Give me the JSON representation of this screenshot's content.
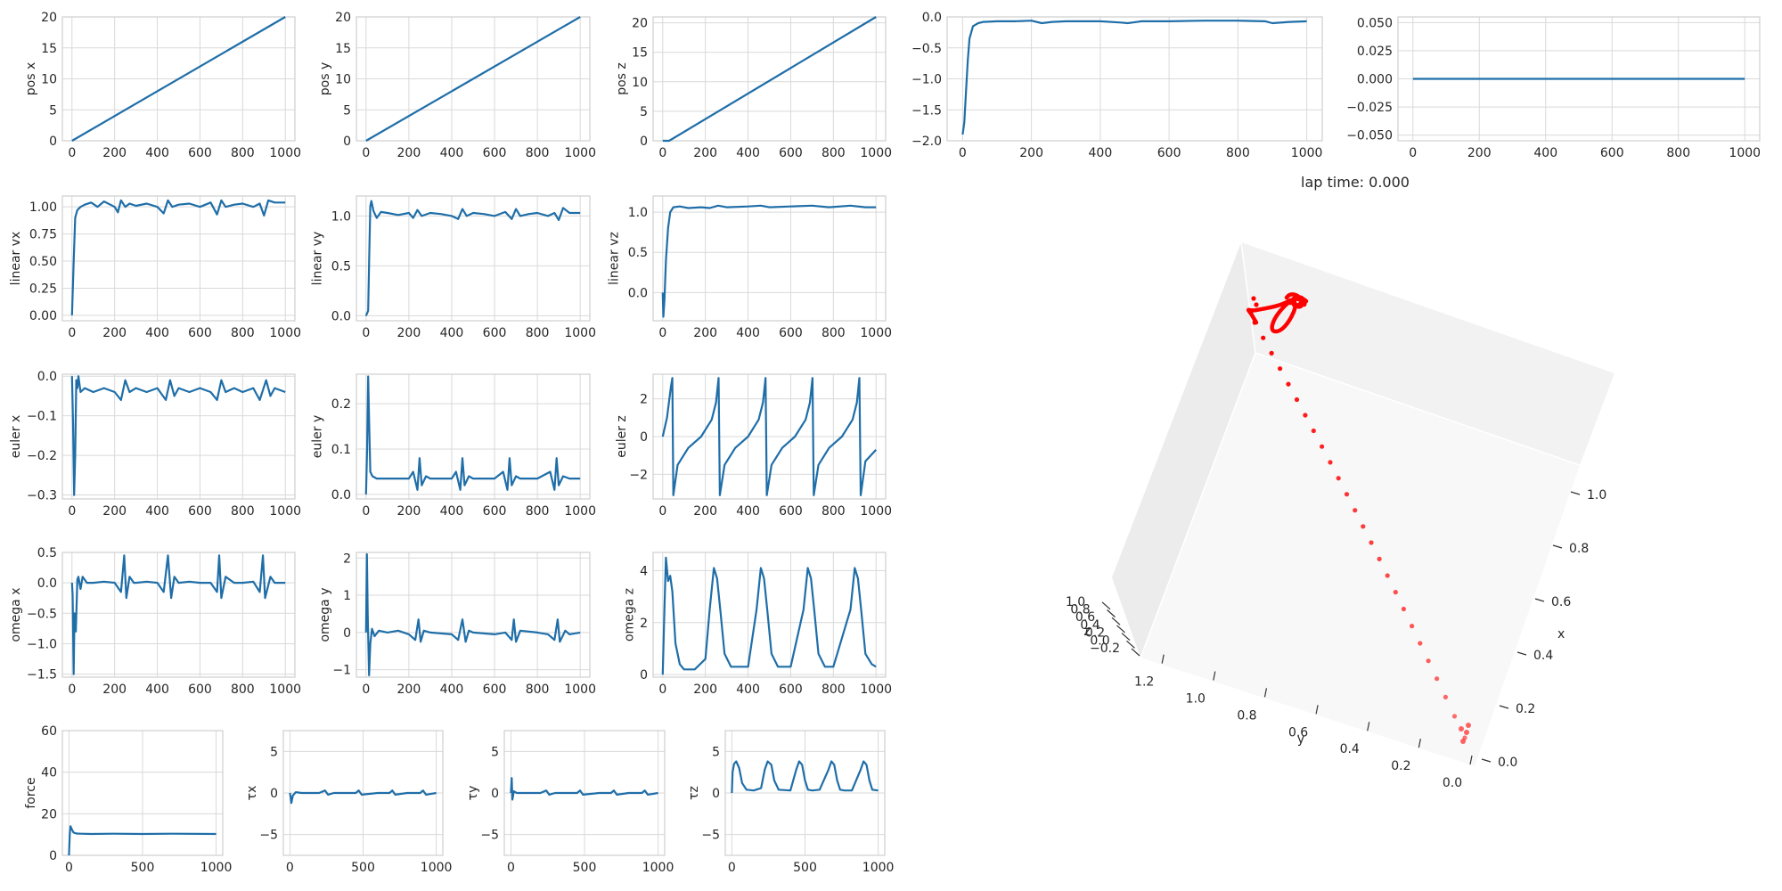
{
  "lap_time_label": "lap time: 0.000",
  "colors": {
    "line": "#1f6ea8",
    "grid": "#d9d9d9",
    "frame": "#cfcfcf",
    "traj": "#ff0000"
  },
  "chart_data": [
    {
      "id": "pos-x",
      "type": "line",
      "ylabel": "pos x",
      "xlim": [
        0,
        1000
      ],
      "ylim": [
        0,
        20
      ],
      "xticks": [
        0,
        200,
        400,
        600,
        800,
        1000
      ],
      "yticks": [
        0,
        5,
        10,
        15,
        20
      ],
      "x": [
        0,
        1000
      ],
      "y": [
        0,
        20
      ]
    },
    {
      "id": "pos-y",
      "type": "line",
      "ylabel": "pos y",
      "xlim": [
        0,
        1000
      ],
      "ylim": [
        0,
        20
      ],
      "xticks": [
        0,
        200,
        400,
        600,
        800,
        1000
      ],
      "yticks": [
        0,
        5,
        10,
        15,
        20
      ],
      "x": [
        0,
        1000
      ],
      "y": [
        0,
        20
      ]
    },
    {
      "id": "pos-z",
      "type": "line",
      "ylabel": "pos z",
      "xlim": [
        0,
        1000
      ],
      "ylim": [
        0,
        21
      ],
      "xticks": [
        0,
        200,
        400,
        600,
        800,
        1000
      ],
      "yticks": [
        0,
        5,
        10,
        15,
        20
      ],
      "x": [
        0,
        30,
        1000
      ],
      "y": [
        0,
        0,
        21
      ]
    },
    {
      "id": "top-right-1",
      "type": "line",
      "ylabel": "",
      "xlim": [
        0,
        1000
      ],
      "ylim": [
        -2,
        0
      ],
      "xticks": [
        0,
        200,
        400,
        600,
        800,
        1000
      ],
      "yticks": [
        -2.0,
        -1.5,
        -1.0,
        -0.5,
        0.0
      ],
      "x": [
        0,
        5,
        10,
        15,
        20,
        30,
        45,
        60,
        100,
        150,
        200,
        230,
        260,
        300,
        400,
        460,
        480,
        520,
        600,
        700,
        800,
        880,
        900,
        950,
        1000
      ],
      "y": [
        -1.9,
        -1.7,
        -1.2,
        -0.7,
        -0.35,
        -0.15,
        -0.1,
        -0.08,
        -0.07,
        -0.07,
        -0.06,
        -0.1,
        -0.08,
        -0.07,
        -0.07,
        -0.09,
        -0.1,
        -0.07,
        -0.07,
        -0.06,
        -0.06,
        -0.07,
        -0.1,
        -0.08,
        -0.07
      ]
    },
    {
      "id": "top-right-2",
      "type": "line",
      "ylabel": "",
      "xlim": [
        0,
        1000
      ],
      "ylim": [
        -0.055,
        0.055
      ],
      "xticks": [
        0,
        200,
        400,
        600,
        800,
        1000
      ],
      "yticks": [
        -0.05,
        -0.025,
        0.0,
        0.025,
        0.05
      ],
      "x": [
        0,
        1000
      ],
      "y": [
        0,
        0
      ]
    },
    {
      "id": "linear-vx",
      "type": "line",
      "ylabel": "linear vx",
      "xlim": [
        0,
        1000
      ],
      "ylim": [
        -0.05,
        1.1
      ],
      "xticks": [
        0,
        200,
        400,
        600,
        800,
        1000
      ],
      "yticks": [
        0.0,
        0.25,
        0.5,
        0.75,
        1.0
      ],
      "x": [
        0,
        8,
        15,
        25,
        40,
        60,
        90,
        120,
        150,
        180,
        200,
        215,
        230,
        250,
        270,
        300,
        350,
        400,
        430,
        450,
        470,
        500,
        550,
        600,
        650,
        680,
        700,
        720,
        760,
        800,
        850,
        880,
        900,
        920,
        950,
        1000
      ],
      "y": [
        0,
        0.5,
        0.9,
        0.97,
        1.0,
        1.02,
        1.04,
        1.0,
        1.05,
        1.02,
        1.0,
        0.95,
        1.06,
        1.0,
        1.03,
        1.01,
        1.03,
        1.0,
        0.94,
        1.06,
        1.0,
        1.02,
        1.03,
        1.0,
        1.04,
        0.93,
        1.06,
        1.0,
        1.02,
        1.03,
        1.0,
        1.03,
        0.92,
        1.06,
        1.04,
        1.04
      ]
    },
    {
      "id": "linear-vy",
      "type": "line",
      "ylabel": "linear vy",
      "xlim": [
        0,
        1000
      ],
      "ylim": [
        -0.05,
        1.2
      ],
      "xticks": [
        0,
        200,
        400,
        600,
        800,
        1000
      ],
      "yticks": [
        0.0,
        0.5,
        1.0
      ],
      "x": [
        0,
        10,
        15,
        20,
        25,
        35,
        50,
        70,
        100,
        150,
        200,
        220,
        240,
        260,
        300,
        350,
        400,
        430,
        450,
        470,
        500,
        550,
        600,
        650,
        680,
        700,
        720,
        760,
        800,
        850,
        880,
        900,
        920,
        950,
        1000
      ],
      "y": [
        0,
        0.05,
        0.6,
        1.1,
        1.15,
        1.05,
        0.98,
        1.04,
        1.03,
        1.01,
        1.03,
        0.98,
        1.06,
        1.0,
        1.03,
        1.02,
        1.0,
        0.97,
        1.07,
        1.0,
        1.03,
        1.02,
        1.0,
        1.04,
        0.97,
        1.07,
        1.0,
        1.02,
        1.03,
        1.0,
        1.03,
        0.96,
        1.08,
        1.03,
        1.03
      ]
    },
    {
      "id": "linear-vz",
      "type": "line",
      "ylabel": "linear vz",
      "xlim": [
        0,
        1000
      ],
      "ylim": [
        -0.35,
        1.2
      ],
      "xticks": [
        0,
        200,
        400,
        600,
        800,
        1000
      ],
      "yticks": [
        0.0,
        0.5,
        1.0
      ],
      "x": [
        0,
        3,
        8,
        15,
        25,
        35,
        50,
        80,
        120,
        180,
        220,
        260,
        300,
        400,
        460,
        500,
        600,
        700,
        780,
        880,
        950,
        1000
      ],
      "y": [
        0,
        -0.3,
        -0.1,
        0.4,
        0.8,
        1.0,
        1.06,
        1.07,
        1.05,
        1.06,
        1.05,
        1.08,
        1.06,
        1.07,
        1.08,
        1.06,
        1.07,
        1.08,
        1.06,
        1.08,
        1.06,
        1.06
      ]
    },
    {
      "id": "euler-x",
      "type": "line",
      "ylabel": "euler x",
      "xlim": [
        0,
        1000
      ],
      "ylim": [
        -0.31,
        0.005
      ],
      "xticks": [
        0,
        200,
        400,
        600,
        800,
        1000
      ],
      "yticks": [
        -0.3,
        -0.2,
        -0.1,
        0.0
      ],
      "x": [
        0,
        5,
        10,
        15,
        20,
        25,
        30,
        40,
        60,
        100,
        150,
        200,
        230,
        250,
        270,
        300,
        350,
        400,
        440,
        460,
        480,
        500,
        550,
        600,
        650,
        680,
        700,
        720,
        760,
        800,
        850,
        880,
        910,
        930,
        950,
        1000
      ],
      "y": [
        0,
        -0.12,
        -0.3,
        -0.2,
        -0.01,
        -0.03,
        0,
        -0.04,
        -0.03,
        -0.04,
        -0.03,
        -0.04,
        -0.06,
        -0.01,
        -0.04,
        -0.03,
        -0.04,
        -0.03,
        -0.06,
        -0.01,
        -0.05,
        -0.03,
        -0.04,
        -0.03,
        -0.04,
        -0.06,
        -0.01,
        -0.04,
        -0.03,
        -0.04,
        -0.03,
        -0.06,
        -0.01,
        -0.05,
        -0.03,
        -0.04
      ]
    },
    {
      "id": "euler-y",
      "type": "line",
      "ylabel": "euler y",
      "xlim": [
        0,
        1000
      ],
      "ylim": [
        -0.01,
        0.265
      ],
      "xticks": [
        0,
        200,
        400,
        600,
        800,
        1000
      ],
      "yticks": [
        0.0,
        0.1,
        0.2
      ],
      "x": [
        0,
        5,
        10,
        15,
        20,
        30,
        50,
        100,
        150,
        200,
        220,
        240,
        250,
        260,
        280,
        300,
        400,
        420,
        440,
        450,
        460,
        480,
        500,
        600,
        640,
        660,
        670,
        680,
        700,
        720,
        800,
        860,
        880,
        890,
        900,
        920,
        950,
        1000
      ],
      "y": [
        0,
        0.1,
        0.26,
        0.15,
        0.05,
        0.04,
        0.035,
        0.035,
        0.035,
        0.035,
        0.05,
        0.01,
        0.08,
        0.02,
        0.04,
        0.035,
        0.035,
        0.05,
        0.01,
        0.08,
        0.02,
        0.04,
        0.035,
        0.035,
        0.05,
        0.01,
        0.08,
        0.02,
        0.04,
        0.035,
        0.035,
        0.05,
        0.01,
        0.08,
        0.02,
        0.04,
        0.035,
        0.035
      ]
    },
    {
      "id": "euler-z",
      "type": "line",
      "ylabel": "euler z",
      "xlim": [
        0,
        1000
      ],
      "ylim": [
        -3.3,
        3.3
      ],
      "xticks": [
        0,
        200,
        400,
        600,
        800,
        1000
      ],
      "yticks": [
        -2,
        0,
        2
      ],
      "x": [
        0,
        20,
        38,
        45,
        50,
        70,
        120,
        180,
        230,
        250,
        262,
        268,
        290,
        340,
        400,
        450,
        470,
        482,
        488,
        510,
        560,
        620,
        670,
        690,
        702,
        708,
        730,
        780,
        840,
        890,
        910,
        922,
        928,
        950,
        1000
      ],
      "y": [
        0,
        1.0,
        2.6,
        3.1,
        -3.1,
        -1.5,
        -0.6,
        0,
        0.9,
        1.8,
        3.1,
        -3.1,
        -1.5,
        -0.6,
        0,
        0.9,
        1.8,
        3.1,
        -3.1,
        -1.5,
        -0.6,
        0,
        0.9,
        1.8,
        3.1,
        -3.1,
        -1.5,
        -0.6,
        0,
        0.9,
        1.8,
        3.1,
        -3.1,
        -1.3,
        -0.7
      ]
    },
    {
      "id": "omega-x",
      "type": "line",
      "ylabel": "omega x",
      "xlim": [
        0,
        1000
      ],
      "ylim": [
        -1.55,
        0.5
      ],
      "xticks": [
        0,
        200,
        400,
        600,
        800,
        1000
      ],
      "yticks": [
        -1.5,
        -1.0,
        -0.5,
        0.0,
        0.5
      ],
      "x": [
        0,
        3,
        8,
        12,
        18,
        25,
        30,
        40,
        50,
        70,
        100,
        150,
        200,
        230,
        245,
        255,
        270,
        290,
        300,
        350,
        400,
        430,
        450,
        465,
        480,
        500,
        550,
        600,
        650,
        680,
        690,
        700,
        720,
        760,
        800,
        850,
        880,
        895,
        905,
        930,
        950,
        1000
      ],
      "y": [
        0,
        -0.2,
        -1.5,
        -0.5,
        -0.8,
        0.05,
        0.1,
        -0.1,
        0.1,
        0,
        0,
        0.02,
        0,
        -0.15,
        0.45,
        -0.25,
        0.1,
        0,
        0,
        0.02,
        0,
        -0.15,
        0.45,
        -0.25,
        0.1,
        0,
        0.02,
        0,
        0,
        -0.15,
        0.45,
        -0.25,
        0.1,
        0,
        0,
        0.02,
        -0.15,
        0.45,
        -0.25,
        0.1,
        0,
        0
      ]
    },
    {
      "id": "omega-y",
      "type": "line",
      "ylabel": "omega y",
      "xlim": [
        0,
        1000
      ],
      "ylim": [
        -1.2,
        2.15
      ],
      "xticks": [
        0,
        200,
        400,
        600,
        800,
        1000
      ],
      "yticks": [
        -1,
        0,
        1,
        2
      ],
      "x": [
        0,
        4,
        8,
        14,
        20,
        28,
        40,
        60,
        100,
        150,
        200,
        230,
        245,
        255,
        270,
        300,
        400,
        430,
        450,
        465,
        480,
        500,
        600,
        650,
        680,
        690,
        700,
        720,
        800,
        850,
        880,
        895,
        905,
        930,
        950,
        1000
      ],
      "y": [
        0,
        2.1,
        0.5,
        -1.15,
        -0.3,
        0.1,
        -0.1,
        0.05,
        0,
        0.05,
        -0.05,
        -0.2,
        0.35,
        -0.25,
        0.05,
        0,
        -0.05,
        -0.2,
        0.35,
        -0.25,
        0.05,
        0,
        -0.05,
        0,
        -0.2,
        0.35,
        -0.25,
        0.05,
        0,
        -0.05,
        -0.2,
        0.35,
        -0.25,
        0.05,
        -0.05,
        0
      ]
    },
    {
      "id": "omega-z",
      "type": "line",
      "ylabel": "omega z",
      "xlim": [
        0,
        1000
      ],
      "ylim": [
        -0.1,
        4.7
      ],
      "xticks": [
        0,
        200,
        400,
        600,
        800,
        1000
      ],
      "yticks": [
        0,
        2,
        4
      ],
      "x": [
        0,
        8,
        15,
        25,
        35,
        45,
        60,
        80,
        100,
        150,
        200,
        220,
        240,
        255,
        270,
        290,
        320,
        400,
        440,
        460,
        475,
        490,
        510,
        540,
        600,
        660,
        680,
        695,
        710,
        730,
        760,
        800,
        880,
        900,
        915,
        930,
        950,
        980,
        1000
      ],
      "y": [
        0,
        2.5,
        4.5,
        3.6,
        3.8,
        3.2,
        1.2,
        0.4,
        0.2,
        0.2,
        0.6,
        2.5,
        4.1,
        3.7,
        2.5,
        0.8,
        0.3,
        0.3,
        2.5,
        4.1,
        3.7,
        2.5,
        0.8,
        0.3,
        0.3,
        2.5,
        4.1,
        3.7,
        2.5,
        0.8,
        0.3,
        0.3,
        2.5,
        4.1,
        3.7,
        2.5,
        0.8,
        0.4,
        0.3
      ]
    },
    {
      "id": "force",
      "type": "line",
      "ylabel": "force",
      "xlim": [
        0,
        1000
      ],
      "ylim": [
        0,
        60
      ],
      "xticks": [
        0,
        500,
        1000
      ],
      "yticks": [
        0,
        20,
        40,
        60
      ],
      "x": [
        0,
        5,
        10,
        20,
        30,
        50,
        80,
        150,
        300,
        500,
        700,
        1000
      ],
      "y": [
        0,
        10,
        14,
        12.5,
        11,
        10.5,
        10.4,
        10.3,
        10.4,
        10.3,
        10.4,
        10.3
      ]
    },
    {
      "id": "tau-x",
      "type": "line",
      "ylabel": "τx",
      "xlim": [
        0,
        1000
      ],
      "ylim": [
        -7.5,
        7.5
      ],
      "xticks": [
        0,
        500,
        1000
      ],
      "yticks": [
        -5,
        0,
        5
      ],
      "x": [
        0,
        5,
        10,
        20,
        40,
        80,
        200,
        240,
        260,
        300,
        450,
        470,
        490,
        600,
        680,
        700,
        720,
        800,
        890,
        910,
        930,
        1000
      ],
      "y": [
        0,
        -0.5,
        -1.2,
        -0.3,
        0.1,
        0,
        0,
        0.3,
        -0.2,
        0,
        0,
        0.3,
        -0.2,
        0,
        0,
        0.3,
        -0.2,
        0,
        0,
        0.3,
        -0.2,
        0
      ]
    },
    {
      "id": "tau-y",
      "type": "line",
      "ylabel": "τy",
      "xlim": [
        0,
        1000
      ],
      "ylim": [
        -7.5,
        7.5
      ],
      "xticks": [
        0,
        500,
        1000
      ],
      "yticks": [
        -5,
        0,
        5
      ],
      "x": [
        0,
        5,
        10,
        20,
        40,
        80,
        200,
        240,
        260,
        300,
        450,
        470,
        490,
        600,
        680,
        700,
        720,
        800,
        890,
        910,
        930,
        1000
      ],
      "y": [
        0,
        1.8,
        -0.8,
        0.2,
        0,
        0,
        0,
        0.3,
        -0.2,
        0,
        0,
        0.3,
        -0.2,
        0,
        0,
        0.3,
        -0.2,
        0,
        0,
        0.3,
        -0.2,
        0
      ]
    },
    {
      "id": "tau-z",
      "type": "line",
      "ylabel": "τz",
      "xlim": [
        0,
        1000
      ],
      "ylim": [
        -7.5,
        7.5
      ],
      "xticks": [
        0,
        500,
        1000
      ],
      "yticks": [
        -5,
        0,
        5
      ],
      "x": [
        0,
        5,
        15,
        30,
        50,
        70,
        100,
        150,
        200,
        225,
        245,
        270,
        290,
        320,
        400,
        440,
        460,
        480,
        500,
        520,
        550,
        600,
        660,
        680,
        700,
        720,
        740,
        770,
        820,
        880,
        900,
        920,
        940,
        960,
        1000
      ],
      "y": [
        0,
        2.5,
        3.5,
        3.8,
        3.0,
        1.2,
        0.4,
        0.3,
        0.6,
        2.8,
        3.8,
        3.4,
        1.5,
        0.4,
        0.3,
        2.8,
        3.8,
        3.4,
        1.5,
        0.4,
        0.3,
        0.4,
        2.8,
        3.8,
        3.4,
        1.5,
        0.4,
        0.3,
        0.3,
        2.8,
        3.8,
        3.4,
        1.5,
        0.4,
        0.3
      ]
    },
    {
      "id": "trajectory-3d",
      "type": "scatter",
      "axes": [
        "x",
        "y",
        "z"
      ],
      "xticks": [
        0.0,
        0.2,
        0.4,
        0.6,
        0.8,
        1.0
      ],
      "yticks": [
        0.0,
        0.2,
        0.4,
        0.6,
        0.8,
        1.0,
        1.2
      ],
      "zticks": [
        -0.2,
        0.0,
        0.2,
        0.4,
        0.6,
        0.8,
        1.0
      ],
      "xlabel": "x",
      "ylabel": "y",
      "zlabel": "z"
    }
  ]
}
